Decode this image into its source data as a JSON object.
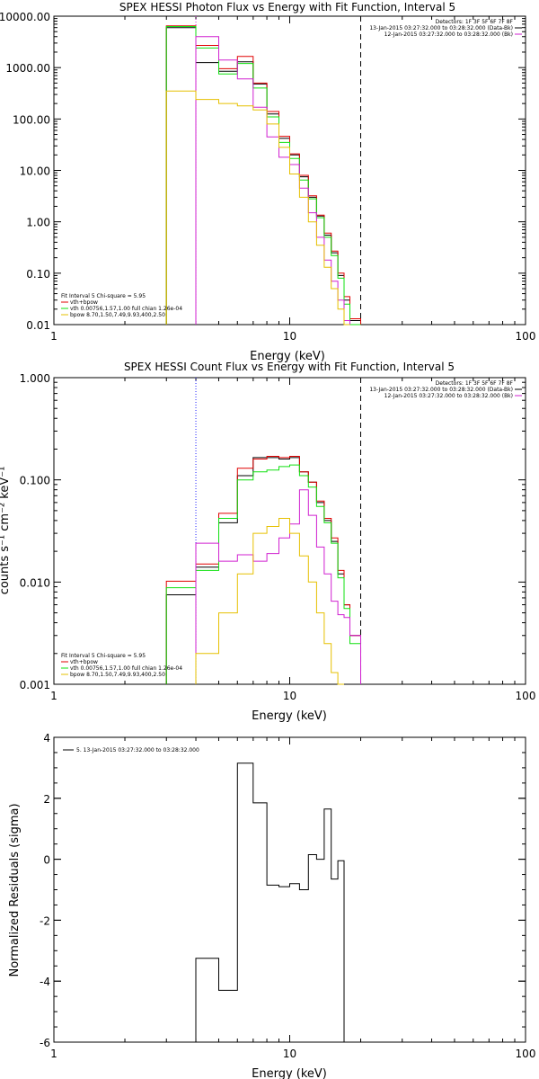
{
  "colors": {
    "black": "#000000",
    "red": "#e00000",
    "green": "#10e010",
    "magenta": "#d020d0",
    "gold": "#e6c000",
    "blue": "#2020ff"
  },
  "chart_data": [
    {
      "type": "line",
      "title": "SPEX HESSI Photon Flux vs Energy with Fit Function, Interval 5",
      "xlabel": "Energy (keV)",
      "ylabel": "",
      "x_scale": "log",
      "y_scale": "log",
      "xlim": [
        1,
        100
      ],
      "ylim": [
        0.01,
        10000
      ],
      "x_ticks": [
        1,
        10,
        100
      ],
      "x_tick_labels": [
        "1",
        "10",
        "100"
      ],
      "y_ticks": [
        10000,
        1000,
        100,
        10,
        1,
        0.1,
        0.01
      ],
      "y_tick_labels": [
        "10000.00",
        "1000.00",
        "100.00",
        "10.00",
        "1.00",
        "0.10",
        "0.01"
      ],
      "bin_edges": [
        3,
        4,
        5,
        6,
        7,
        8,
        9,
        10,
        11,
        12,
        13,
        14,
        15,
        16,
        17,
        18,
        20
      ],
      "series": [
        {
          "name": "",
          "color": "black",
          "values": [
            6000,
            1250,
            850,
            1300,
            480,
            125,
            42,
            20,
            7.5,
            3.0,
            1.3,
            0.55,
            0.25,
            0.09,
            0.03,
            0.012
          ]
        },
        {
          "name": "vth+bpow",
          "color": "red",
          "values": [
            6500,
            2700,
            950,
            1650,
            500,
            140,
            46,
            21,
            8.0,
            3.2,
            1.35,
            0.6,
            0.27,
            0.1,
            0.035,
            0.013
          ]
        },
        {
          "name": "vth 0.00756,1.57,1.00  full chian 1.26e-04",
          "color": "green",
          "values": [
            6300,
            2400,
            750,
            1200,
            400,
            110,
            35,
            17,
            6.5,
            2.8,
            1.2,
            0.5,
            0.22,
            0.08,
            0.025,
            0.01
          ]
        },
        {
          "name": "",
          "color": "magenta",
          "values": [
            null,
            4000,
            1400,
            600,
            170,
            45,
            18,
            13,
            4.5,
            1.5,
            0.5,
            0.18,
            0.07,
            0.03,
            0.012,
            null
          ]
        },
        {
          "name": "bpow 8.70,1.50,7.49,9.93,400,2.50",
          "color": "gold",
          "values": [
            350,
            240,
            200,
            180,
            150,
            80,
            28,
            8.5,
            3.0,
            1.0,
            0.35,
            0.13,
            0.05,
            0.02,
            0.01,
            null
          ]
        }
      ],
      "vlines": [
        {
          "x": 4,
          "style": "dotted",
          "color": "magenta"
        },
        {
          "x": 20,
          "style": "dashed",
          "color": "black"
        }
      ],
      "legend_top_right": [
        "Detectors: 1F 3F 5F 6F 7F 8F",
        "13-Jan-2015 03:27:32.000 to 03:28:32.000 (Data-Bk)",
        "12-Jan-2015 03:27:32.000 to 03:28:32.000 (Bk)"
      ],
      "legend_top_right_colors": [
        "",
        "black",
        "magenta"
      ],
      "legend_bottom_left_header": "Fit Interval  5   Chi-square = 5.95"
    },
    {
      "type": "line",
      "title": "SPEX HESSI Count Flux vs Energy with Fit Function, Interval 5",
      "xlabel": "Energy (keV)",
      "ylabel": "counts s⁻¹ cm⁻² keV⁻¹",
      "x_scale": "log",
      "y_scale": "log",
      "xlim": [
        1,
        100
      ],
      "ylim": [
        0.001,
        1
      ],
      "x_ticks": [
        1,
        10,
        100
      ],
      "x_tick_labels": [
        "1",
        "10",
        "100"
      ],
      "y_ticks": [
        1,
        0.1,
        0.01,
        0.001
      ],
      "y_tick_labels": [
        "1.000",
        "0.100",
        "0.010",
        "0.001"
      ],
      "bin_edges": [
        3,
        4,
        5,
        6,
        7,
        8,
        9,
        10,
        11,
        12,
        13,
        14,
        15,
        16,
        17,
        18,
        20
      ],
      "series": [
        {
          "name": "",
          "color": "black",
          "values": [
            0.0075,
            0.014,
            0.038,
            0.11,
            0.165,
            0.165,
            0.16,
            0.165,
            0.12,
            0.095,
            0.06,
            0.04,
            0.025,
            0.012,
            0.006,
            0.003
          ]
        },
        {
          "name": "vth+bpow",
          "color": "red",
          "values": [
            0.0102,
            0.015,
            0.047,
            0.13,
            0.16,
            0.17,
            0.165,
            0.17,
            0.12,
            0.095,
            0.062,
            0.042,
            0.027,
            0.013,
            0.006,
            0.003
          ]
        },
        {
          "name": "vth 0.00756,1.57,1.00  full chian 1.26e-04",
          "color": "green",
          "values": [
            0.0088,
            0.013,
            0.042,
            0.1,
            0.12,
            0.125,
            0.135,
            0.14,
            0.11,
            0.085,
            0.055,
            0.038,
            0.024,
            0.011,
            0.0055,
            0.0025
          ]
        },
        {
          "name": "",
          "color": "magenta",
          "values": [
            null,
            0.024,
            0.016,
            0.0185,
            0.016,
            0.019,
            0.027,
            0.037,
            0.08,
            0.045,
            0.022,
            0.012,
            0.0065,
            0.0048,
            0.0045,
            0.003
          ]
        },
        {
          "name": "bpow 8.70,1.50,7.49,9.93,400,2.50",
          "color": "gold",
          "values": [
            null,
            0.002,
            0.005,
            0.012,
            0.03,
            0.035,
            0.042,
            0.03,
            0.018,
            0.01,
            0.005,
            0.0025,
            0.0013,
            0.001,
            null,
            null
          ]
        }
      ],
      "vlines": [
        {
          "x": 4,
          "style": "dotted",
          "color": "blue"
        },
        {
          "x": 20,
          "style": "dashed",
          "color": "black"
        }
      ],
      "legend_top_right": [
        "Detectors: 1F 3F 5F 6F 7F 8F",
        "13-Jan-2015 03:27:32.000 to 03:28:32.000 (Data-Bk)",
        "12-Jan-2015 03:27:32.000 to 03:28:32.000 (Bk)"
      ],
      "legend_top_right_colors": [
        "",
        "black",
        "magenta"
      ],
      "legend_bottom_left_header": "Fit Interval  5   Chi-square = 5.95"
    },
    {
      "type": "line",
      "title": "",
      "xlabel": "Energy (keV)",
      "ylabel": "Normalized Residuals (sigma)",
      "x_scale": "log",
      "y_scale": "linear",
      "xlim": [
        1,
        100
      ],
      "ylim": [
        -6,
        4
      ],
      "x_ticks": [
        1,
        10,
        100
      ],
      "x_tick_labels": [
        "1",
        "10",
        "100"
      ],
      "y_ticks": [
        4,
        2,
        0,
        -2,
        -4,
        -6
      ],
      "y_tick_labels": [
        "4",
        "2",
        "0",
        "-2",
        "-4",
        "-6"
      ],
      "bin_edges": [
        4,
        5,
        6,
        7,
        8,
        9,
        10,
        11,
        12,
        13,
        14,
        15,
        16,
        17,
        18,
        20
      ],
      "series": [
        {
          "name": "5. 13-Jan-2015 03:27:32.000 to 03:28:32.000",
          "color": "black",
          "values": [
            -3.25,
            -4.3,
            3.15,
            1.85,
            -0.85,
            -0.9,
            -0.8,
            -1.0,
            0.15,
            0.0,
            1.65,
            -0.65,
            -0.05,
            null,
            null
          ]
        }
      ]
    }
  ]
}
